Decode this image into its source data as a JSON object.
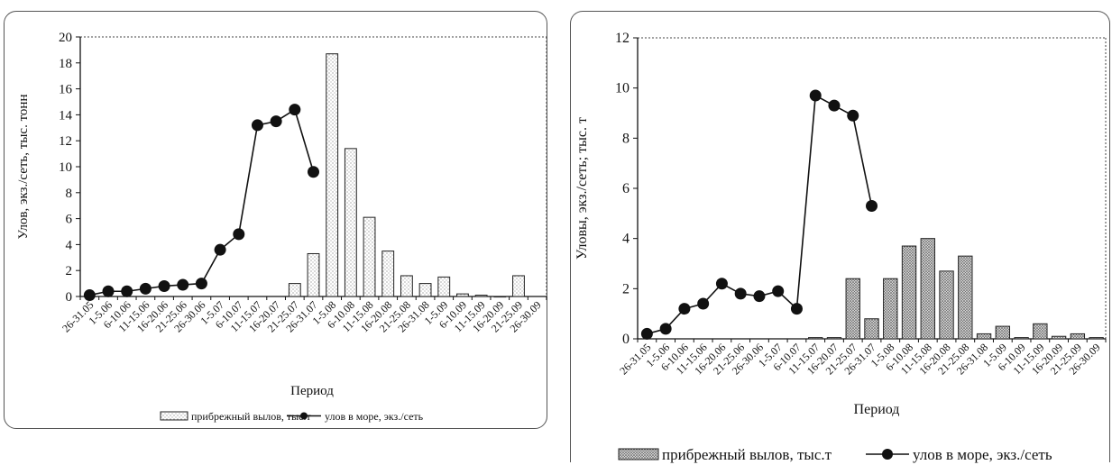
{
  "chart_data": [
    {
      "type": "bar",
      "ylabel": "Улов, экз./сеть, тыс. тонн",
      "xlabel": "Период",
      "ylim": [
        0,
        20
      ],
      "yticks": [
        0,
        2,
        4,
        6,
        8,
        10,
        12,
        14,
        16,
        18,
        20
      ],
      "categories": [
        "26-31.05",
        "1-5.06",
        "6-10.06",
        "11-15.06",
        "16-20.06",
        "21-25.06",
        "26-30.06",
        "1-5.07",
        "6-10.07",
        "11-15.07",
        "16-20.07",
        "21-25.07",
        "26-31.07",
        "1-5.08",
        "6-10.08",
        "11-15.08",
        "16-20.08",
        "21-25.08",
        "26-31.08",
        "1-5.09",
        "6-10.09",
        "11-15.09",
        "16-20.09",
        "21-25.09",
        "26-30.09"
      ],
      "series": [
        {
          "name": "прибрежный вылов, тыс.т",
          "kind": "bar",
          "values": [
            null,
            null,
            null,
            null,
            null,
            null,
            null,
            null,
            null,
            null,
            null,
            1.0,
            3.3,
            18.7,
            11.4,
            6.1,
            3.5,
            1.6,
            1.0,
            1.5,
            0.2,
            0.1,
            0,
            1.6,
            null
          ]
        },
        {
          "name": "улов в море, экз./сеть",
          "kind": "line",
          "values": [
            0.1,
            0.4,
            0.4,
            0.6,
            0.8,
            0.9,
            1.0,
            3.6,
            4.8,
            13.2,
            13.5,
            14.4,
            9.6,
            null,
            null,
            null,
            null,
            null,
            null,
            null,
            null,
            null,
            null,
            null,
            null
          ]
        }
      ],
      "legend": {
        "bar_label": "прибрежный вылов, тыс.т",
        "line_label": "улов в море, экз./сеть"
      },
      "grid": false,
      "legend_position": "bottom"
    },
    {
      "type": "bar",
      "ylabel": "Уловы, экз./сеть; тыс. т",
      "xlabel": "Период",
      "ylim": [
        0,
        12
      ],
      "yticks": [
        0,
        2,
        4,
        6,
        8,
        10,
        12
      ],
      "categories": [
        "26-31.05",
        "1-5.06",
        "6-10.06",
        "11-15.06",
        "16-20.06",
        "21-25.06",
        "26-30.06",
        "1-5.07",
        "6-10.07",
        "11-15.07",
        "16-20.07",
        "21-25.07",
        "26-31.07",
        "1-5.08",
        "6-10.08",
        "11-15.08",
        "16-20.08",
        "21-25.08",
        "26-31.08",
        "1-5.09",
        "6-10.09",
        "11-15.09",
        "16-20.09",
        "21-25.09",
        "26-30.09"
      ],
      "series": [
        {
          "name": "прибрежный вылов, тыс.т",
          "kind": "bar",
          "values": [
            null,
            null,
            null,
            null,
            null,
            null,
            null,
            null,
            null,
            0.05,
            0.05,
            2.4,
            0.8,
            2.4,
            3.7,
            4.0,
            2.7,
            3.3,
            0.2,
            0.5,
            0.05,
            0.6,
            0.1,
            0.2,
            0.05
          ]
        },
        {
          "name": "улов в море, экз./сеть",
          "kind": "line",
          "values": [
            0.2,
            0.4,
            1.2,
            1.4,
            2.2,
            1.8,
            1.7,
            1.9,
            1.2,
            9.7,
            9.3,
            8.9,
            5.3,
            null,
            null,
            null,
            null,
            null,
            null,
            null,
            null,
            null,
            null,
            null,
            null
          ]
        }
      ],
      "legend": {
        "bar_label": "прибрежный вылов, тыс.т",
        "line_label": "улов в море, экз./сеть"
      },
      "grid": false,
      "legend_position": "bottom"
    }
  ]
}
